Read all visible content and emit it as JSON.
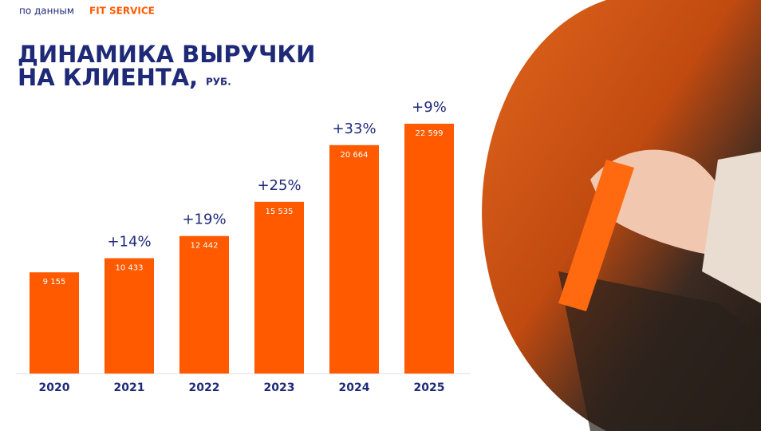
{
  "header": {
    "source_prefix": "по данным",
    "brand": "FIT SERVICE"
  },
  "chart_data": {
    "type": "bar",
    "title_lines": [
      "ДИНАМИКА ВЫРУЧКИ",
      "НА КЛИЕНТА,"
    ],
    "unit": "РУБ.",
    "categories": [
      "2020",
      "2021",
      "2022",
      "2023",
      "2024",
      "2025"
    ],
    "values": [
      9155,
      10433,
      12442,
      15535,
      20664,
      22599
    ],
    "value_labels": [
      "9 155",
      "10 433",
      "12 442",
      "15 535",
      "20 664",
      "22 599"
    ],
    "annotations": [
      null,
      "+14%",
      "+19%",
      "+25%",
      "+33%",
      "+9%"
    ],
    "color": "#ff5a00"
  }
}
